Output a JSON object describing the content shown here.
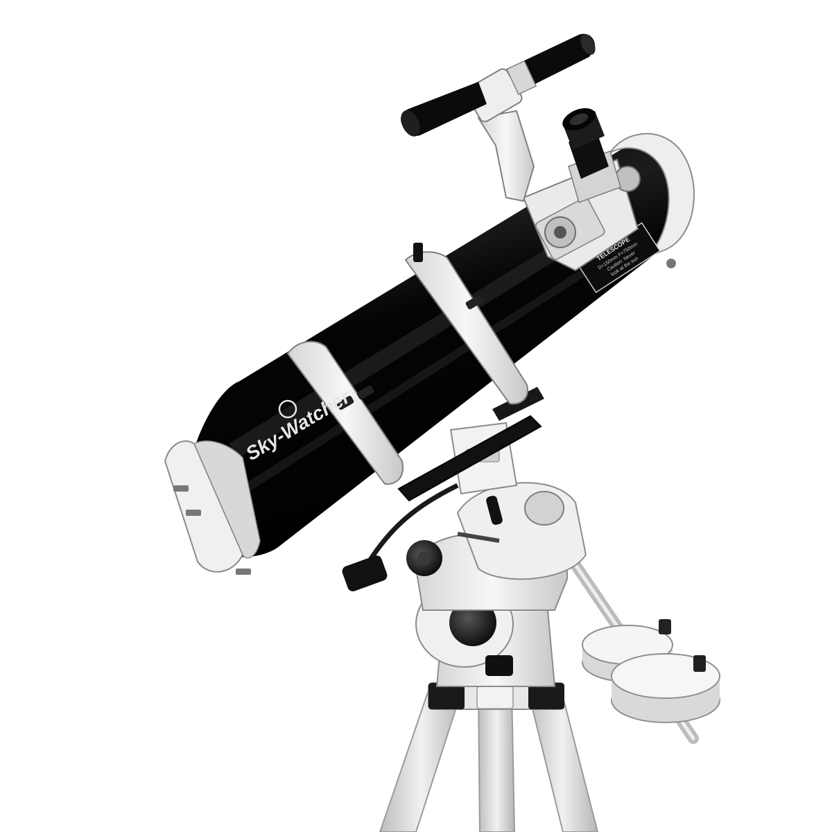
{
  "photo": {
    "subject": "reflector-telescope-on-equatorial-mount",
    "colors": {
      "background": "#ffffff",
      "tube": "#070707",
      "tube_highlight": "#2a2a2a",
      "mount": "#e9e9e9",
      "mount_shadow": "#bdbdbd",
      "metal": "#cfcfcf",
      "dark_part": "#141414"
    }
  },
  "tube": {
    "brand_label": "Sky-Watcher"
  },
  "spec_label": {
    "title": "TELESCOPE",
    "line1": "D=150mm F=750mm",
    "line2": "Caution: Never",
    "line3": "look at the sun"
  }
}
